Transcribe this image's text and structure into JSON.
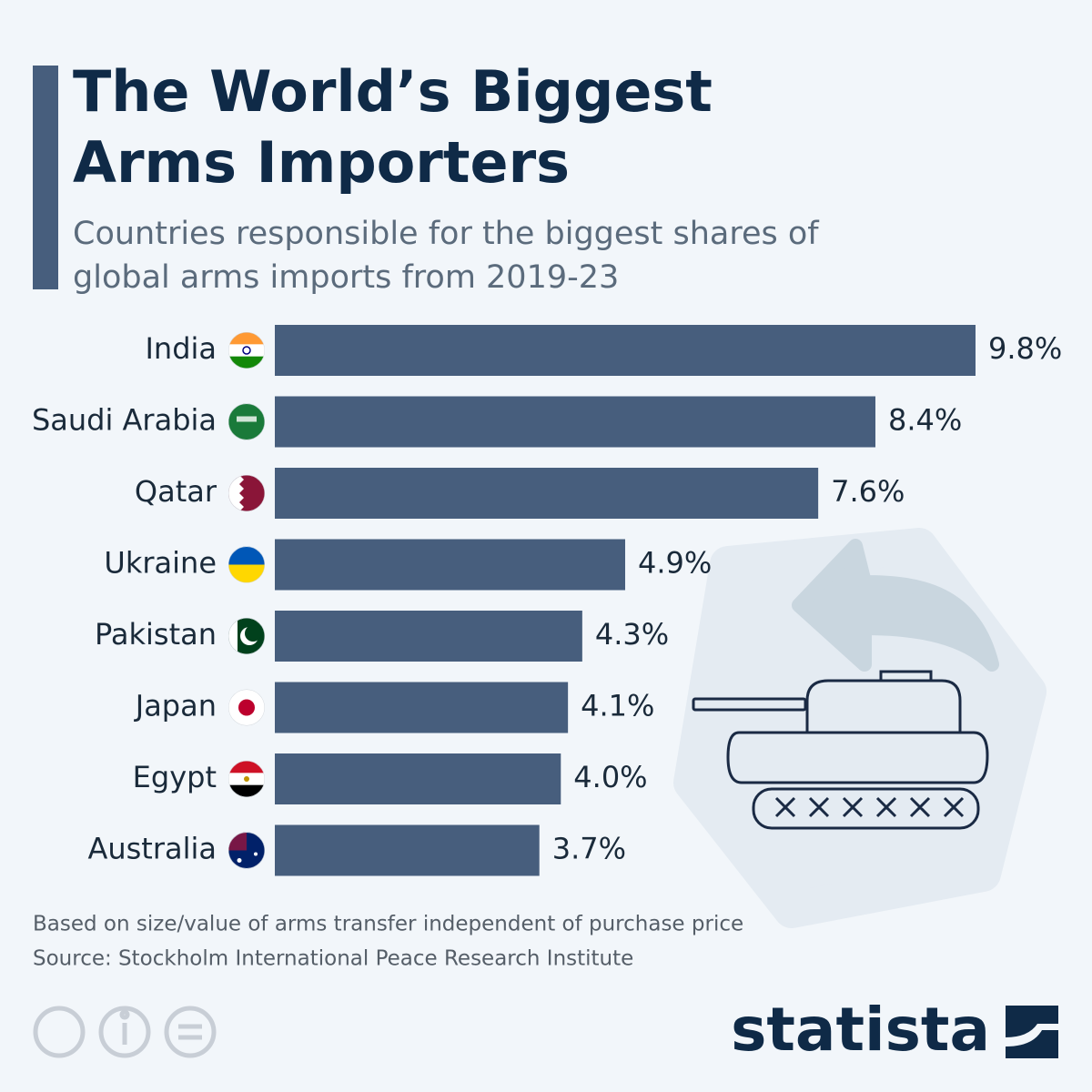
{
  "chart_data": {
    "type": "bar",
    "title": "The World’s Biggest Arms Importers",
    "subtitle": "Countries responsible for the biggest shares of global arms imports from 2019-23",
    "categories": [
      "India",
      "Saudi Arabia",
      "Qatar",
      "Ukraine",
      "Pakistan",
      "Japan",
      "Egypt",
      "Australia"
    ],
    "values": [
      9.8,
      8.4,
      7.6,
      4.9,
      4.3,
      4.1,
      4.0,
      3.7
    ],
    "value_labels": [
      "9.8%",
      "8.4%",
      "7.6%",
      "4.9%",
      "4.3%",
      "4.1%",
      "4.0%",
      "3.7%"
    ],
    "color": "#475e7d",
    "notes": [
      "Based on size/value of arms transfer independent of purchase price",
      "Source: Stockholm International Peace Research Institute"
    ],
    "logo": "statista"
  }
}
